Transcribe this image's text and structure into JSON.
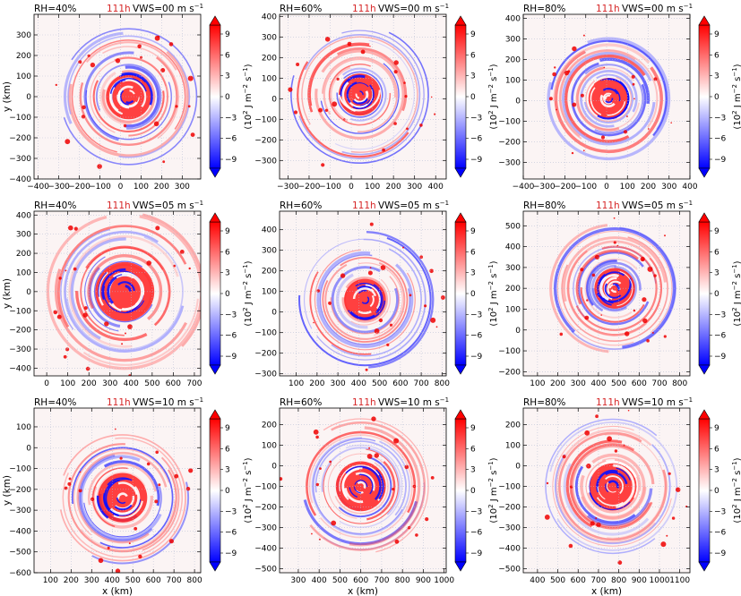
{
  "figure": {
    "time_label": "111h",
    "time_color": "#d62728",
    "x_axis_label": "x (km)",
    "y_axis_label": "y (km)",
    "colorbar_label_main": "(10",
    "colorbar_label_exp": "2",
    "colorbar_label_rest": " J m",
    "colorbar_label_exp2": "−2",
    "colorbar_label_s": " s",
    "colorbar_label_exp3": "−1",
    "colorbar_label_close": ")",
    "colorbar_ticks": [
      "9",
      "6",
      "3",
      "0",
      "−3",
      "−6",
      "−9"
    ],
    "colormap": {
      "low": "#0000ff",
      "mid": "#ffffff",
      "high": "#ff0000"
    }
  },
  "chart_data": [
    {
      "type": "heatmap",
      "rh_label": "RH=40%",
      "vws_label": "VWS=00 m s",
      "vws_exp": "−1",
      "xlim": [
        -420,
        390
      ],
      "ylim": [
        -400,
        400
      ],
      "xticks": [
        -400,
        -300,
        -200,
        -100,
        0,
        100,
        200,
        300
      ],
      "yticks": [
        -400,
        -300,
        -200,
        -100,
        0,
        100,
        200,
        300
      ],
      "center": [
        40,
        0
      ],
      "core_radius_km": 110,
      "ring_extent_km": 330,
      "show_xlabel": false,
      "show_ylabel": true
    },
    {
      "type": "heatmap",
      "rh_label": "RH=60%",
      "vws_label": "VWS=00 m s",
      "vws_exp": "−1",
      "xlim": [
        -340,
        450
      ],
      "ylim": [
        -390,
        410
      ],
      "xticks": [
        -300,
        -200,
        -100,
        0,
        100,
        200,
        300,
        400
      ],
      "yticks": [
        -300,
        -200,
        -100,
        0,
        100,
        200,
        300,
        400
      ],
      "center": [
        40,
        20
      ],
      "core_radius_km": 100,
      "ring_extent_km": 330,
      "show_xlabel": false,
      "show_ylabel": false
    },
    {
      "type": "heatmap",
      "rh_label": "RH=80%",
      "vws_label": "VWS=00 m s",
      "vws_exp": "−1",
      "xlim": [
        -400,
        400
      ],
      "ylim": [
        -380,
        420
      ],
      "xticks": [
        -400,
        -300,
        -200,
        -100,
        0,
        100,
        200,
        300,
        400
      ],
      "yticks": [
        -300,
        -200,
        -100,
        0,
        100,
        200,
        300,
        400
      ],
      "center": [
        10,
        10
      ],
      "core_radius_km": 100,
      "ring_extent_km": 300,
      "show_xlabel": false,
      "show_ylabel": false
    },
    {
      "type": "heatmap",
      "rh_label": "RH=40%",
      "vws_label": "VWS=05 m s",
      "vws_exp": "−1",
      "xlim": [
        -60,
        730
      ],
      "ylim": [
        -440,
        420
      ],
      "xticks": [
        0,
        100,
        200,
        300,
        400,
        500,
        600,
        700
      ],
      "yticks": [
        -400,
        -300,
        -200,
        -100,
        0,
        100,
        200,
        300,
        400
      ],
      "center": [
        370,
        0
      ],
      "core_radius_km": 140,
      "ring_extent_km": 380,
      "show_xlabel": false,
      "show_ylabel": true
    },
    {
      "type": "heatmap",
      "rh_label": "RH=60%",
      "vws_label": "VWS=05 m s",
      "vws_exp": "−1",
      "xlim": [
        20,
        820
      ],
      "ylim": [
        -310,
        490
      ],
      "xticks": [
        100,
        200,
        300,
        400,
        500,
        600,
        700,
        800
      ],
      "yticks": [
        -300,
        -200,
        -100,
        0,
        100,
        200,
        300,
        400
      ],
      "center": [
        430,
        60
      ],
      "core_radius_km": 100,
      "ring_extent_km": 330,
      "show_xlabel": false,
      "show_ylabel": false
    },
    {
      "type": "heatmap",
      "rh_label": "RH=80%",
      "vws_label": "VWS=05 m s",
      "vws_exp": "−1",
      "xlim": [
        30,
        850
      ],
      "ylim": [
        -220,
        570
      ],
      "xticks": [
        100,
        200,
        300,
        400,
        500,
        600,
        700,
        800
      ],
      "yticks": [
        -200,
        -100,
        0,
        100,
        200,
        300,
        400,
        500
      ],
      "center": [
        480,
        200
      ],
      "core_radius_km": 100,
      "ring_extent_km": 320,
      "show_xlabel": false,
      "show_ylabel": false
    },
    {
      "type": "heatmap",
      "rh_label": "RH=40%",
      "vws_label": "VWS=10 m s",
      "vws_exp": "−1",
      "xlim": [
        20,
        830
      ],
      "ylim": [
        -600,
        190
      ],
      "xticks": [
        100,
        200,
        300,
        400,
        500,
        600,
        700,
        800
      ],
      "yticks": [
        -600,
        -500,
        -400,
        -300,
        -200,
        -100,
        0,
        100
      ],
      "center": [
        450,
        -240
      ],
      "core_radius_km": 120,
      "ring_extent_km": 320,
      "show_xlabel": true,
      "show_ylabel": true
    },
    {
      "type": "heatmap",
      "rh_label": "RH=60%",
      "vws_label": "VWS=10 m s",
      "vws_exp": "−1",
      "xlim": [
        210,
        1010
      ],
      "ylim": [
        -520,
        280
      ],
      "xticks": [
        300,
        400,
        500,
        600,
        700,
        800,
        900,
        1000
      ],
      "yticks": [
        -500,
        -400,
        -300,
        -200,
        -100,
        0,
        100,
        200
      ],
      "center": [
        600,
        -100
      ],
      "core_radius_km": 120,
      "ring_extent_km": 330,
      "show_xlabel": true,
      "show_ylabel": false
    },
    {
      "type": "heatmap",
      "rh_label": "RH=80%",
      "vws_label": "VWS=10 m s",
      "vws_exp": "−1",
      "xlim": [
        330,
        1150
      ],
      "ylim": [
        -520,
        280
      ],
      "xticks": [
        400,
        500,
        600,
        700,
        800,
        900,
        1000,
        1100
      ],
      "yticks": [
        -500,
        -400,
        -300,
        -200,
        -100,
        0,
        100,
        200
      ],
      "center": [
        770,
        -100
      ],
      "core_radius_km": 120,
      "ring_extent_km": 330,
      "show_xlabel": true,
      "show_ylabel": false
    }
  ]
}
